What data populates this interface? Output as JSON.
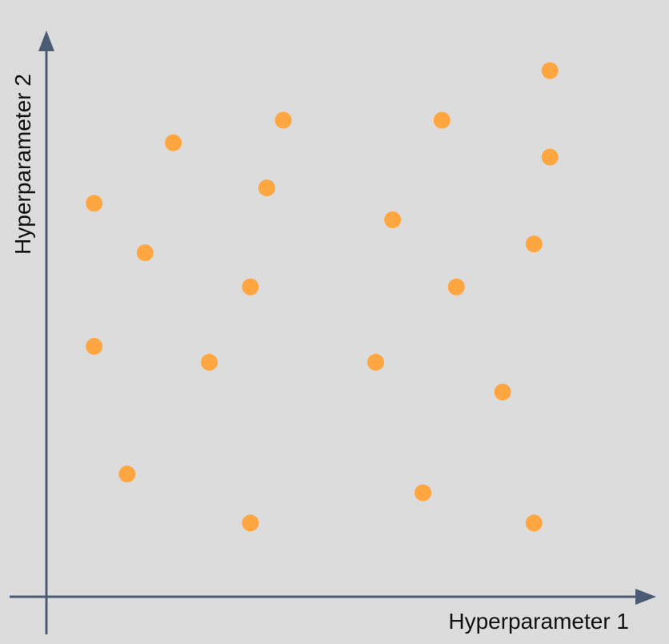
{
  "chart_data": {
    "type": "scatter",
    "xlabel": "Hyperparameter 1",
    "ylabel": "Hyperparameter 2",
    "xlim": [
      0,
      100
    ],
    "ylim": [
      0,
      100
    ],
    "grid": false,
    "colors": {
      "background": "#dcdcdc",
      "axis": "#4b5b74",
      "points": "#ffa640"
    },
    "points": [
      {
        "x": 98.0,
        "y": 95.6
      },
      {
        "x": 46.1,
        "y": 86.6
      },
      {
        "x": 77.0,
        "y": 86.6
      },
      {
        "x": 24.7,
        "y": 82.5
      },
      {
        "x": 98.0,
        "y": 79.9
      },
      {
        "x": 42.9,
        "y": 74.3
      },
      {
        "x": 9.3,
        "y": 71.5
      },
      {
        "x": 67.4,
        "y": 68.5
      },
      {
        "x": 94.9,
        "y": 64.1
      },
      {
        "x": 19.2,
        "y": 62.5
      },
      {
        "x": 39.7,
        "y": 56.3
      },
      {
        "x": 79.8,
        "y": 56.3
      },
      {
        "x": 9.3,
        "y": 45.5
      },
      {
        "x": 31.7,
        "y": 42.6
      },
      {
        "x": 64.1,
        "y": 42.6
      },
      {
        "x": 88.8,
        "y": 37.2
      },
      {
        "x": 15.7,
        "y": 22.3
      },
      {
        "x": 73.3,
        "y": 18.9
      },
      {
        "x": 39.7,
        "y": 13.4
      },
      {
        "x": 94.9,
        "y": 13.4
      }
    ]
  }
}
